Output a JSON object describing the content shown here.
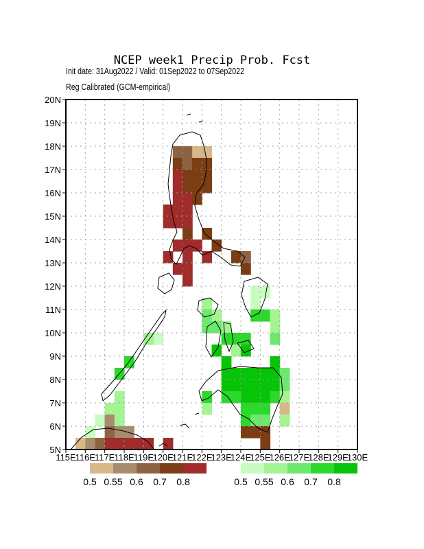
{
  "title": "NCEP week1 Precip Prob. Fcst",
  "subtitle_dates": "Init date: 31Aug2022 / Valid: 01Sep2022 to 07Sep2022",
  "subtitle_method": "Reg Calibrated (GCM-empirical)",
  "lat_labels": [
    "20N",
    "19N",
    "18N",
    "17N",
    "16N",
    "15N",
    "14N",
    "13N",
    "12N",
    "11N",
    "10N",
    "9N",
    "8N",
    "7N",
    "6N",
    "5N"
  ],
  "lon_labels": [
    "115E",
    "116E",
    "117E",
    "118E",
    "119E",
    "120E",
    "121E",
    "122E",
    "123E",
    "124E",
    "125E",
    "126E",
    "127E",
    "128E",
    "129E",
    "130E"
  ],
  "dry_legend": {
    "colors": [
      "#d8b888",
      "#a88c6c",
      "#8c6444",
      "#7c3c14",
      "#a02c2c"
    ],
    "labels": [
      "0.5",
      "0.55",
      "0.6",
      "0.7",
      "0.8"
    ]
  },
  "wet_legend": {
    "colors": [
      "#c8fcc0",
      "#a4f494",
      "#6ce86c",
      "#2cd82c",
      "#08c408"
    ],
    "labels": [
      "0.5",
      "0.55",
      "0.6",
      "0.7",
      "0.8"
    ]
  },
  "colors": {
    "frame": "#000000",
    "grid": "#a0a0a0"
  }
}
